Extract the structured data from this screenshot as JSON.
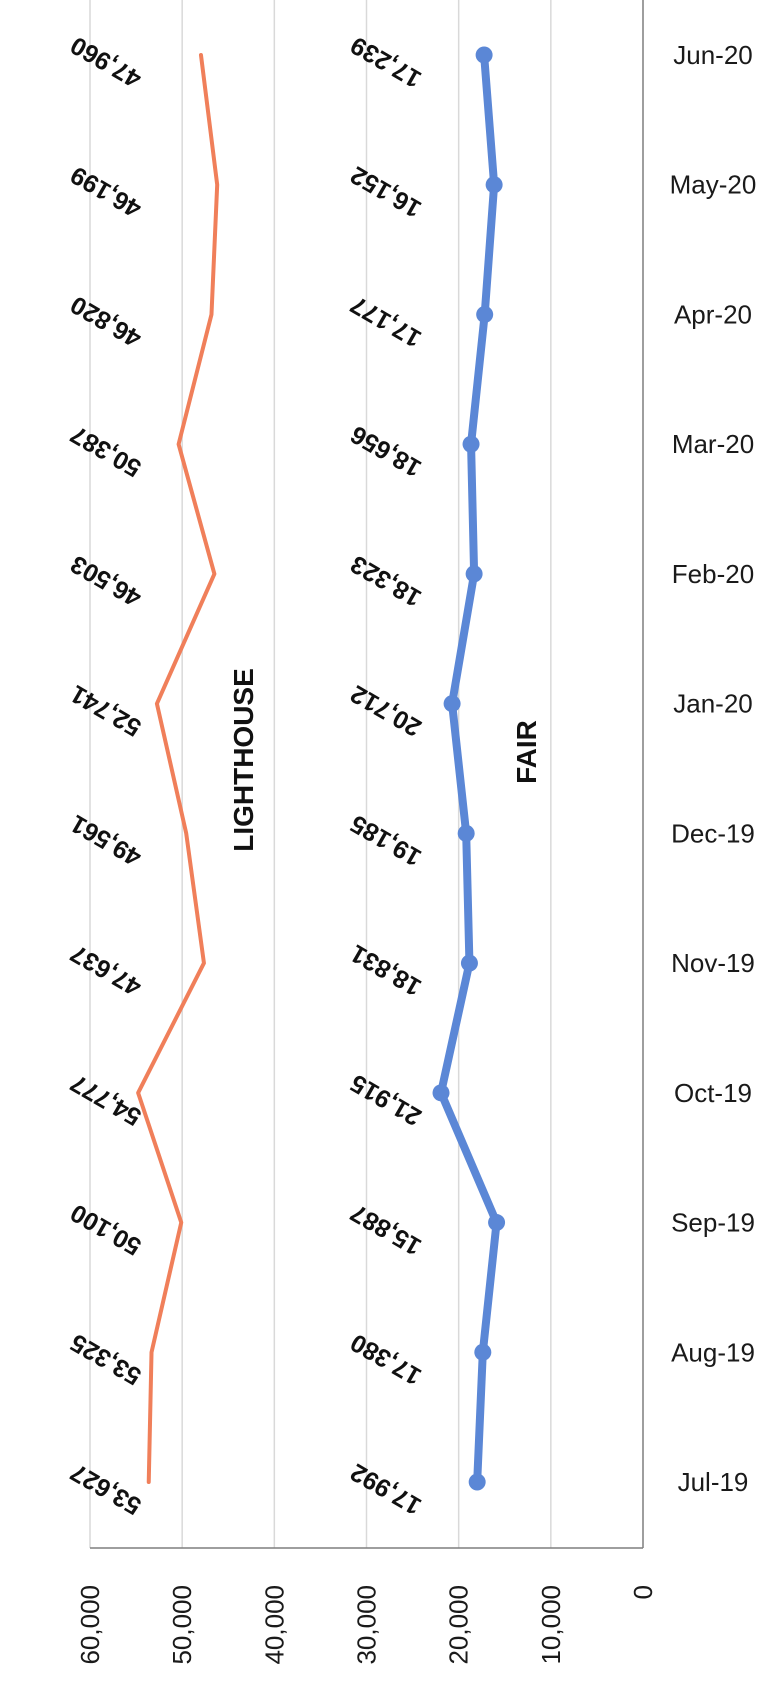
{
  "chart_data": {
    "type": "line",
    "orientation": "rotated 90 degrees (value axis horizontal, decreasing left to right; months vertical, Jul-19 at bottom)",
    "categories": [
      "Jul-19",
      "Aug-19",
      "Sep-19",
      "Oct-19",
      "Nov-19",
      "Dec-19",
      "Jan-20",
      "Feb-20",
      "Mar-20",
      "Apr-20",
      "May-20",
      "Jun-20"
    ],
    "series": [
      {
        "name": "LIGHTHOUSE",
        "color": "#f07f5a",
        "markers": false,
        "values": [
          53627,
          53325,
          50100,
          54777,
          47637,
          49561,
          52741,
          46503,
          50387,
          46820,
          46199,
          47960
        ],
        "labels": [
          "53,627",
          "53,325",
          "50,100",
          "54,777",
          "47,637",
          "49,561",
          "52,741",
          "46,503",
          "50,387",
          "46,820",
          "46,199",
          "47,960"
        ]
      },
      {
        "name": "FAIR",
        "color": "#5b87d6",
        "markers": true,
        "values": [
          17992,
          17380,
          15887,
          21915,
          18831,
          19185,
          20712,
          18323,
          18656,
          17177,
          16152,
          17239
        ],
        "labels": [
          "17,992",
          "17,380",
          "15,887",
          "21,915",
          "18,831",
          "19,185",
          "20,712",
          "18,323",
          "18,656",
          "17,177",
          "16,152",
          "17,239"
        ]
      }
    ],
    "value_axis": {
      "range": [
        0,
        60000
      ],
      "ticks": [
        60000,
        50000,
        40000,
        30000,
        20000,
        10000,
        0
      ],
      "tick_labels": [
        "60,000",
        "50,000",
        "40,000",
        "30,000",
        "20,000",
        "10,000",
        "0"
      ]
    },
    "grid": true,
    "legend": "none"
  }
}
